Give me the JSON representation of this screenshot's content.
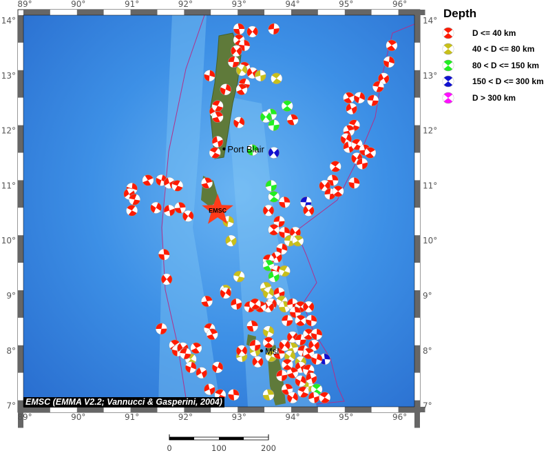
{
  "map": {
    "lon_range": [
      89,
      96.3
    ],
    "lat_range": [
      6.95,
      14.1
    ],
    "lon_ticks": [
      89,
      90,
      91,
      92,
      93,
      94,
      95,
      96
    ],
    "lat_ticks": [
      7,
      8,
      9,
      10,
      11,
      12,
      13,
      14
    ],
    "tick_labels_lon": [
      "89°",
      "90°",
      "91°",
      "92°",
      "93°",
      "94°",
      "95°",
      "96°"
    ],
    "tick_labels_lat": [
      "7°",
      "8°",
      "9°",
      "10°",
      "11°",
      "12°",
      "13°",
      "14°"
    ],
    "ocean_color": "#3a8ee6",
    "land_color": "#5f7a3a",
    "plate_boundary_color": "#b0308a",
    "cities": [
      {
        "name": "Port Blair",
        "lon": 92.72,
        "lat": 11.67
      },
      {
        "name": "Msl",
        "lon": 93.42,
        "lat": 8.0
      }
    ],
    "epicenter": {
      "label": "EMSC",
      "lon": 92.6,
      "lat": 10.55,
      "color": "#ff3b1a"
    }
  },
  "legend": {
    "title": "Depth",
    "classes": [
      {
        "label": "D <= 40 km",
        "color": "#ff1a00"
      },
      {
        "label": "40 < D <= 80 km",
        "color": "#c8c01a"
      },
      {
        "label": "80 < D <= 150 km",
        "color": "#22ee22"
      },
      {
        "label": "150 < D <= 300 km",
        "color": "#1010d0"
      },
      {
        "label": "D > 300 km",
        "color": "#ff10ff"
      }
    ]
  },
  "credit": "EMSC (EMMA V2.2; Vannucci & Gasperini, 2004)",
  "scale_bar": {
    "labels": [
      "0",
      "100",
      "200"
    ]
  },
  "events": [
    [
      93.0,
      13.85,
      0
    ],
    [
      93.25,
      13.8,
      0
    ],
    [
      93.65,
      13.85,
      0
    ],
    [
      93.0,
      13.65,
      0
    ],
    [
      93.1,
      13.55,
      0
    ],
    [
      92.95,
      13.45,
      0
    ],
    [
      92.9,
      13.25,
      0
    ],
    [
      93.1,
      13.15,
      0
    ],
    [
      92.45,
      13.0,
      0
    ],
    [
      93.25,
      13.05,
      0
    ],
    [
      93.1,
      12.85,
      0
    ],
    [
      93.05,
      12.75,
      0
    ],
    [
      92.75,
      12.75,
      0
    ],
    [
      92.55,
      12.35,
      0
    ],
    [
      92.6,
      12.45,
      0
    ],
    [
      92.6,
      12.25,
      0
    ],
    [
      93.0,
      12.15,
      0
    ],
    [
      92.6,
      11.8,
      0
    ],
    [
      92.55,
      11.6,
      0
    ],
    [
      94.0,
      12.2,
      0
    ],
    [
      93.05,
      13.1,
      1
    ],
    [
      93.4,
      13.0,
      1
    ],
    [
      93.7,
      12.95,
      1
    ],
    [
      93.6,
      12.3,
      2
    ],
    [
      93.5,
      12.25,
      2
    ],
    [
      93.65,
      12.1,
      2
    ],
    [
      93.9,
      12.45,
      2
    ],
    [
      93.25,
      11.65,
      2
    ],
    [
      93.65,
      11.6,
      3
    ],
    [
      94.25,
      10.7,
      3
    ],
    [
      95.85,
      13.55,
      0
    ],
    [
      95.8,
      13.25,
      0
    ],
    [
      95.7,
      12.95,
      0
    ],
    [
      95.6,
      12.8,
      0
    ],
    [
      95.05,
      12.6,
      0
    ],
    [
      95.25,
      12.6,
      0
    ],
    [
      95.1,
      12.4,
      0
    ],
    [
      95.15,
      12.1,
      0
    ],
    [
      95.05,
      12.0,
      0
    ],
    [
      95.0,
      11.85,
      0
    ],
    [
      95.05,
      11.7,
      0
    ],
    [
      95.2,
      11.75,
      0
    ],
    [
      95.35,
      11.65,
      0
    ],
    [
      95.2,
      11.5,
      0
    ],
    [
      95.3,
      11.4,
      0
    ],
    [
      94.8,
      11.35,
      0
    ],
    [
      94.75,
      11.1,
      0
    ],
    [
      94.6,
      11.0,
      0
    ],
    [
      94.7,
      10.85,
      0
    ],
    [
      94.85,
      10.9,
      0
    ],
    [
      95.15,
      11.05,
      0
    ],
    [
      94.3,
      10.55,
      0
    ],
    [
      95.5,
      12.55,
      0
    ],
    [
      95.45,
      11.6,
      0
    ],
    [
      91.0,
      10.95,
      0
    ],
    [
      90.95,
      10.85,
      0
    ],
    [
      91.05,
      10.75,
      0
    ],
    [
      91.3,
      11.1,
      0
    ],
    [
      91.55,
      11.1,
      0
    ],
    [
      91.7,
      11.05,
      0
    ],
    [
      91.85,
      11.0,
      0
    ],
    [
      92.4,
      11.05,
      0
    ],
    [
      91.45,
      10.6,
      0
    ],
    [
      91.7,
      10.55,
      0
    ],
    [
      91.0,
      10.55,
      0
    ],
    [
      91.9,
      10.6,
      0
    ],
    [
      92.05,
      10.45,
      0
    ],
    [
      93.6,
      11.0,
      2
    ],
    [
      93.65,
      10.8,
      2
    ],
    [
      93.85,
      10.7,
      0
    ],
    [
      93.55,
      10.55,
      0
    ],
    [
      93.75,
      10.35,
      0
    ],
    [
      93.65,
      10.2,
      0
    ],
    [
      93.85,
      10.15,
      0
    ],
    [
      94.05,
      10.15,
      0
    ],
    [
      93.95,
      10.0,
      1
    ],
    [
      94.1,
      10.0,
      1
    ],
    [
      93.8,
      9.85,
      0
    ],
    [
      93.7,
      9.7,
      0
    ],
    [
      93.55,
      9.65,
      0
    ],
    [
      93.55,
      9.55,
      2
    ],
    [
      93.7,
      9.45,
      0
    ],
    [
      93.65,
      9.35,
      2
    ],
    [
      93.85,
      9.45,
      1
    ],
    [
      93.5,
      9.15,
      1
    ],
    [
      93.55,
      9.05,
      1
    ],
    [
      93.75,
      9.05,
      0
    ],
    [
      93.8,
      8.9,
      1
    ],
    [
      93.85,
      8.8,
      1
    ],
    [
      93.6,
      8.85,
      0
    ],
    [
      94.0,
      8.85,
      0
    ],
    [
      94.15,
      8.8,
      0
    ],
    [
      94.05,
      8.7,
      0
    ],
    [
      94.3,
      8.8,
      0
    ],
    [
      93.9,
      8.55,
      0
    ],
    [
      94.15,
      8.55,
      0
    ],
    [
      94.35,
      8.55,
      0
    ],
    [
      93.55,
      8.8,
      0
    ],
    [
      93.2,
      8.8,
      0
    ],
    [
      93.4,
      8.8,
      0
    ],
    [
      92.8,
      10.35,
      1
    ],
    [
      92.85,
      10.0,
      1
    ],
    [
      93.0,
      9.35,
      1
    ],
    [
      92.75,
      9.1,
      1
    ],
    [
      93.55,
      8.35,
      1
    ],
    [
      93.3,
      8.0,
      1
    ],
    [
      93.6,
      7.9,
      1
    ],
    [
      94.0,
      8.05,
      1
    ],
    [
      93.95,
      7.9,
      1
    ],
    [
      93.05,
      7.9,
      1
    ],
    [
      92.1,
      7.85,
      1
    ],
    [
      93.55,
      7.2,
      1
    ],
    [
      94.15,
      7.8,
      1
    ],
    [
      94.3,
      7.35,
      1
    ],
    [
      94.45,
      7.3,
      2
    ],
    [
      94.6,
      7.85,
      3
    ],
    [
      94.0,
      8.25,
      0
    ],
    [
      94.15,
      8.2,
      0
    ],
    [
      94.3,
      8.3,
      0
    ],
    [
      94.45,
      8.3,
      0
    ],
    [
      94.4,
      8.1,
      0
    ],
    [
      94.2,
      8.0,
      0
    ],
    [
      94.3,
      7.95,
      0
    ],
    [
      94.45,
      7.85,
      0
    ],
    [
      94.15,
      7.7,
      0
    ],
    [
      94.3,
      7.65,
      0
    ],
    [
      94.0,
      7.6,
      0
    ],
    [
      94.15,
      7.45,
      0
    ],
    [
      94.35,
      7.5,
      0
    ],
    [
      94.2,
      7.25,
      0
    ],
    [
      93.9,
      7.3,
      0
    ],
    [
      94.0,
      7.15,
      0
    ],
    [
      94.4,
      7.15,
      0
    ],
    [
      94.6,
      7.15,
      0
    ],
    [
      93.75,
      7.95,
      0
    ],
    [
      93.85,
      8.1,
      0
    ],
    [
      93.8,
      7.55,
      0
    ],
    [
      93.9,
      7.75,
      0
    ],
    [
      91.6,
      9.75,
      0
    ],
    [
      91.65,
      9.3,
      0
    ],
    [
      91.55,
      8.4,
      0
    ],
    [
      91.8,
      8.1,
      0
    ],
    [
      91.85,
      8.0,
      0
    ],
    [
      91.95,
      8.05,
      0
    ],
    [
      92.0,
      7.95,
      0
    ],
    [
      92.2,
      8.05,
      0
    ],
    [
      92.1,
      7.7,
      0
    ],
    [
      92.3,
      7.6,
      0
    ],
    [
      92.45,
      8.4,
      0
    ],
    [
      92.5,
      8.3,
      0
    ],
    [
      92.6,
      7.7,
      0
    ],
    [
      92.45,
      7.3,
      0
    ],
    [
      92.65,
      7.2,
      0
    ],
    [
      92.4,
      8.9,
      0
    ],
    [
      92.75,
      9.05,
      0
    ],
    [
      92.95,
      8.85,
      0
    ],
    [
      93.3,
      8.85,
      0
    ],
    [
      93.25,
      8.45,
      0
    ],
    [
      93.05,
      8.0,
      0
    ],
    [
      93.3,
      8.1,
      0
    ],
    [
      93.55,
      8.15,
      0
    ],
    [
      92.9,
      7.2,
      0
    ],
    [
      93.35,
      7.8,
      0
    ]
  ]
}
